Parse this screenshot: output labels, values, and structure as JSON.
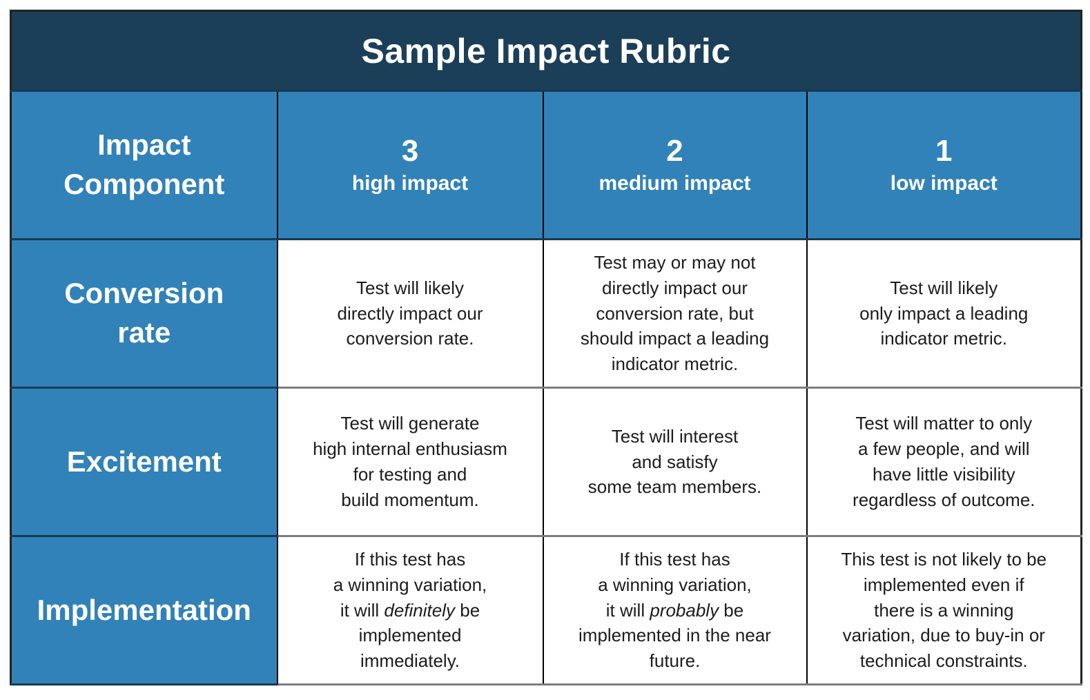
{
  "title": "Sample Impact Rubric",
  "colors": {
    "title_bg": "#1b3f58",
    "header_bg": "#3182b8",
    "grid_dark": "#173a52",
    "grid_gray": "#7d7d7d",
    "border_black": "#000000",
    "header_text": "#ffffff",
    "body_text": "#1c1c1c",
    "page_bg": "#ffffff"
  },
  "table": {
    "corner_label": "Impact\nComponent",
    "columns": [
      {
        "score": "3",
        "label": "high impact"
      },
      {
        "score": "2",
        "label": "medium impact"
      },
      {
        "score": "1",
        "label": "low impact"
      }
    ],
    "rows": [
      {
        "label": "Conversion\nrate",
        "cells": [
          "Test will likely\ndirectly impact our\nconversion rate.",
          "Test may or may not\ndirectly impact our\nconversion rate, but\nshould impact a leading\nindicator metric.",
          "Test will likely\nonly impact a leading\nindicator metric."
        ]
      },
      {
        "label": "Excitement",
        "cells": [
          "Test will generate\nhigh internal enthusiasm\nfor testing and\nbuild momentum.",
          "Test will interest\nand satisfy\nsome team members.",
          "Test will matter to only\na few people, and will\nhave little visibility\nregardless of outcome."
        ]
      },
      {
        "label": "Implementation",
        "cells": [
          "If this test has\na winning variation,\nit will *definitely* be\nimplemented\nimmediately.",
          "If this test has\na winning variation,\nit will *probably* be\nimplemented in the near\nfuture.",
          "This test is not likely to be\nimplemented even if\nthere is a winning\nvariation, due to buy-in or\ntechnical constraints."
        ]
      }
    ]
  }
}
